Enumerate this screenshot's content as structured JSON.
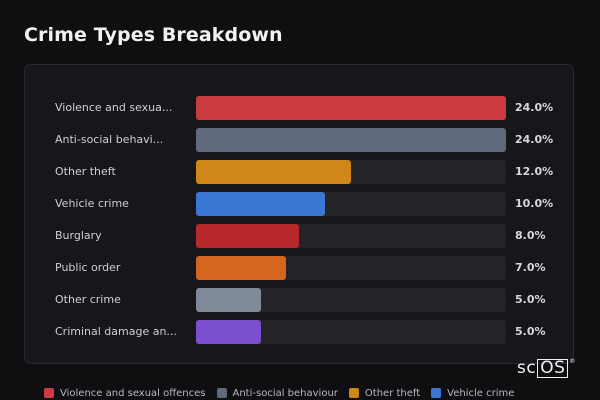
{
  "title": "Crime Types Breakdown",
  "colors": {
    "background": "#0f0f12",
    "card": "#17171b",
    "track": "#232328"
  },
  "chart_data": {
    "type": "bar",
    "orientation": "horizontal",
    "title": "",
    "categories": [
      "Violence and sexua...",
      "Anti-social behavi...",
      "Other theft",
      "Vehicle crime",
      "Burglary",
      "Public order",
      "Other crime",
      "Criminal damage an..."
    ],
    "values": [
      24.0,
      24.0,
      12.0,
      10.0,
      8.0,
      7.0,
      5.0,
      5.0
    ],
    "value_labels": [
      "24.0%",
      "24.0%",
      "12.0%",
      "10.0%",
      "8.0%",
      "7.0%",
      "5.0%",
      "5.0%"
    ],
    "bar_colors": [
      "#cc3b3f",
      "#5f6b7c",
      "#d18717",
      "#3a77d4",
      "#b8272a",
      "#d4661e",
      "#7e8a9a",
      "#7a4fd0"
    ],
    "xlim": [
      0,
      24.0
    ],
    "grid": false,
    "legend": {
      "position": "bottom",
      "entries": [
        {
          "label": "Violence and sexual offences",
          "color": "#cc3b3f"
        },
        {
          "label": "Anti-social behaviour",
          "color": "#5f6b7c"
        },
        {
          "label": "Other theft",
          "color": "#d18717"
        },
        {
          "label": "Vehicle crime",
          "color": "#3a77d4"
        }
      ]
    }
  },
  "watermark": {
    "text_plain": "sc",
    "text_boxed": "OS",
    "mark": "®"
  }
}
